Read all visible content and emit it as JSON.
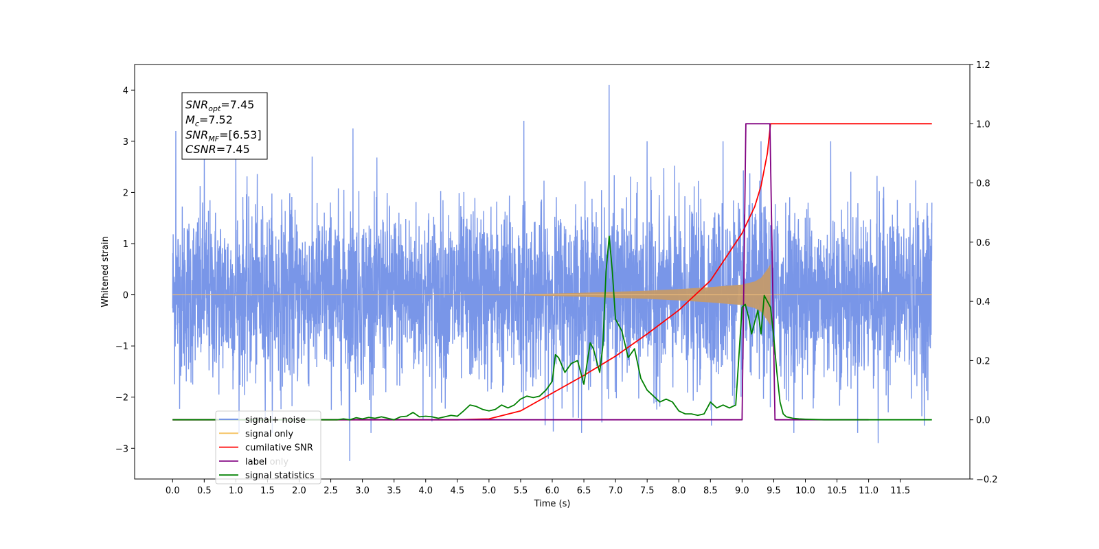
{
  "chart_data": {
    "type": "line",
    "xlabel": "Time (s)",
    "ylabel_left": "Whitened strain",
    "ylabel_right": "",
    "xlim": [
      -0.6,
      12.6
    ],
    "xticks": [
      0.0,
      0.5,
      1.0,
      1.5,
      2.0,
      2.5,
      3.0,
      3.5,
      4.0,
      4.5,
      5.0,
      5.5,
      6.0,
      6.5,
      7.0,
      7.5,
      8.0,
      8.5,
      9.0,
      9.5,
      10.0,
      10.5,
      11.0,
      11.5
    ],
    "xtick_labels": [
      "0.0",
      "0.5",
      "1.0",
      "1.5",
      "2.0",
      "2.5",
      "3.0",
      "3.5",
      "4.0",
      "4.5",
      "5.0",
      "5.5",
      "6.0",
      "6.5",
      "7.0",
      "7.5",
      "8.0",
      "8.5",
      "9.0",
      "9.5",
      "10.0",
      "10.5",
      "11.0",
      "11.5"
    ],
    "ylim_left": [
      -3.6,
      4.5
    ],
    "yticks_left": [
      -3,
      -2,
      -1,
      0,
      1,
      2,
      3,
      4
    ],
    "ytick_labels_left": [
      "−3",
      "−2",
      "−1",
      "0",
      "1",
      "2",
      "3",
      "4"
    ],
    "ylim_right": [
      -0.2,
      1.2
    ],
    "yticks_right": [
      -0.2,
      0.0,
      0.2,
      0.4,
      0.6,
      0.8,
      1.0,
      1.2
    ],
    "ytick_labels_right": [
      "−0.2",
      "0.0",
      "0.2",
      "0.4",
      "0.6",
      "0.8",
      "1.0",
      "1.2"
    ],
    "annotation": {
      "lines": [
        {
          "main": "SNR",
          "sub": "opt",
          "rest": "=7.45"
        },
        {
          "main": "M",
          "sub": "c",
          "rest": "=7.52"
        },
        {
          "main": "SNR",
          "sub": "MF",
          "rest": "=[6.53]"
        },
        {
          "main": "CSNR",
          "sub": "",
          "rest": "=7.45"
        }
      ]
    },
    "legend": {
      "placement": "lower-left",
      "entries": [
        {
          "label": "signal+ noise",
          "color": "#6a8be6"
        },
        {
          "label": "signal only",
          "color": "#f5c15c"
        },
        {
          "label": "cumilative SNR",
          "color": "#ff0000"
        },
        {
          "label": "label",
          "color": "#800080"
        },
        {
          "label": "signal statistics",
          "color": "#008000"
        }
      ],
      "hidden_text": "label only"
    },
    "series": [
      {
        "name": "signal+ noise",
        "axis": "left",
        "color": "#6a8be6",
        "x_range": [
          0.0,
          12.0
        ],
        "envelope_peaks": [
          {
            "x": 0.05,
            "y": 3.2
          },
          {
            "x": 0.5,
            "y": 2.8
          },
          {
            "x": 1.0,
            "y": 2.8
          },
          {
            "x": 2.85,
            "y": 3.25
          },
          {
            "x": 2.8,
            "y": -3.25
          },
          {
            "x": 5.55,
            "y": 3.4
          },
          {
            "x": 6.9,
            "y": 4.1
          },
          {
            "x": 7.5,
            "y": 3.0
          },
          {
            "x": 8.7,
            "y": 3.0
          },
          {
            "x": 9.3,
            "y": 3.0
          },
          {
            "x": 10.4,
            "y": 3.0
          },
          {
            "x": 11.15,
            "y": -2.9
          },
          {
            "x": 12.0,
            "y": 1.8
          }
        ]
      },
      {
        "name": "signal only",
        "axis": "left",
        "color": "#f5c15c",
        "x": [
          0.0,
          5.5,
          6.5,
          7.0,
          7.5,
          8.0,
          8.5,
          9.0,
          9.2,
          9.3,
          9.4,
          9.45,
          9.5,
          12.0
        ],
        "amplitude": [
          0.0,
          0.01,
          0.04,
          0.06,
          0.08,
          0.11,
          0.15,
          0.2,
          0.26,
          0.33,
          0.5,
          0.6,
          0.0,
          0.0
        ]
      },
      {
        "name": "cumilative SNR",
        "axis": "right",
        "color": "#ff0000",
        "x": [
          0.0,
          4.5,
          5.0,
          5.5,
          6.0,
          6.5,
          7.0,
          7.5,
          8.0,
          8.5,
          9.0,
          9.2,
          9.3,
          9.4,
          9.45,
          9.5,
          12.0
        ],
        "values": [
          0.0,
          0.0,
          0.003,
          0.03,
          0.09,
          0.15,
          0.215,
          0.29,
          0.37,
          0.47,
          0.63,
          0.72,
          0.79,
          0.9,
          1.0,
          1.0,
          1.0
        ]
      },
      {
        "name": "label",
        "axis": "right",
        "color": "#800080",
        "x": [
          0.0,
          9.0,
          9.06,
          9.44,
          9.52,
          11.0
        ],
        "values": [
          0.0,
          0.0,
          1.0,
          1.0,
          0.0,
          0.0
        ]
      },
      {
        "name": "signal statistics",
        "axis": "right",
        "color": "#008000",
        "x": [
          0.0,
          2.6,
          2.7,
          2.8,
          2.9,
          3.0,
          3.1,
          3.2,
          3.3,
          3.4,
          3.5,
          3.6,
          3.7,
          3.8,
          3.9,
          4.0,
          4.1,
          4.2,
          4.3,
          4.4,
          4.5,
          4.6,
          4.7,
          4.8,
          4.9,
          5.0,
          5.1,
          5.2,
          5.3,
          5.4,
          5.5,
          5.6,
          5.7,
          5.8,
          5.9,
          6.0,
          6.05,
          6.1,
          6.2,
          6.3,
          6.4,
          6.5,
          6.6,
          6.65,
          6.7,
          6.75,
          6.8,
          6.85,
          6.9,
          6.95,
          7.0,
          7.1,
          7.2,
          7.3,
          7.4,
          7.5,
          7.6,
          7.7,
          7.8,
          7.9,
          8.0,
          8.1,
          8.2,
          8.3,
          8.4,
          8.5,
          8.6,
          8.7,
          8.8,
          8.9,
          9.0,
          9.05,
          9.1,
          9.15,
          9.2,
          9.25,
          9.3,
          9.35,
          9.4,
          9.45,
          9.5,
          9.55,
          9.6,
          9.65,
          9.7,
          9.8,
          9.9,
          10.0,
          10.3,
          11.5,
          12.0
        ],
        "values": [
          0.0,
          0.0,
          0.003,
          0.0,
          0.007,
          0.003,
          0.008,
          0.005,
          0.01,
          0.005,
          0.0,
          0.01,
          0.012,
          0.025,
          0.01,
          0.012,
          0.01,
          0.005,
          0.01,
          0.015,
          0.012,
          0.03,
          0.05,
          0.045,
          0.035,
          0.03,
          0.035,
          0.05,
          0.04,
          0.05,
          0.07,
          0.08,
          0.075,
          0.08,
          0.1,
          0.13,
          0.22,
          0.21,
          0.16,
          0.19,
          0.2,
          0.12,
          0.26,
          0.24,
          0.2,
          0.16,
          0.25,
          0.5,
          0.62,
          0.5,
          0.34,
          0.3,
          0.21,
          0.24,
          0.14,
          0.1,
          0.08,
          0.06,
          0.07,
          0.06,
          0.03,
          0.02,
          0.02,
          0.015,
          0.02,
          0.06,
          0.04,
          0.05,
          0.04,
          0.05,
          0.38,
          0.39,
          0.35,
          0.29,
          0.33,
          0.37,
          0.29,
          0.42,
          0.4,
          0.38,
          0.28,
          0.16,
          0.06,
          0.02,
          0.01,
          0.005,
          0.003,
          0.002,
          0.0,
          0.0,
          0.0
        ]
      }
    ]
  }
}
